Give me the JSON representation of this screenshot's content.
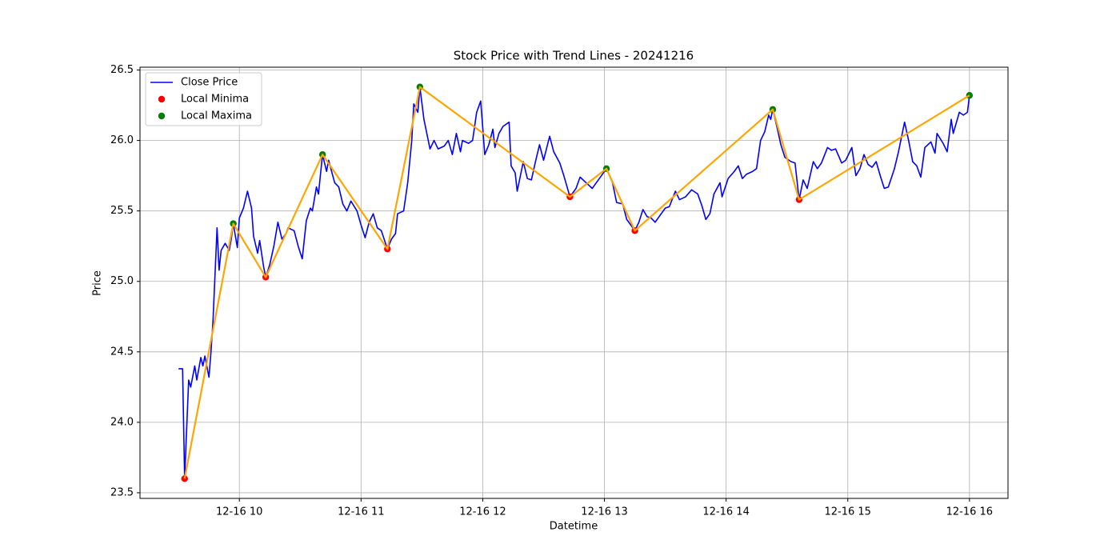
{
  "chart_data": {
    "type": "line",
    "title": "Stock Price with Trend Lines - 20241216",
    "xlabel": "Datetime",
    "ylabel": "Price",
    "grid": true,
    "legend": "upper left",
    "xlim": [
      "12-16 09:11",
      "12-16 16:19"
    ],
    "xticks": [
      {
        "value": "12-16 10:00",
        "label": "12-16 10"
      },
      {
        "value": "12-16 11:00",
        "label": "12-16 11"
      },
      {
        "value": "12-16 12:00",
        "label": "12-16 12"
      },
      {
        "value": "12-16 13:00",
        "label": "12-16 13"
      },
      {
        "value": "12-16 14:00",
        "label": "12-16 14"
      },
      {
        "value": "12-16 15:00",
        "label": "12-16 15"
      },
      {
        "value": "12-16 16:00",
        "label": "12-16 16"
      }
    ],
    "ylim": [
      23.46,
      26.52
    ],
    "yticks": [
      23.5,
      {
        "value": 24,
        "label": "24.0"
      },
      24.5,
      {
        "value": 25,
        "label": "25.0"
      },
      25.5,
      {
        "value": 26,
        "label": "26.0"
      },
      26.5
    ],
    "x": [
      "12-16 09:30",
      "12-16 09:32",
      "12-16 09:33",
      "12-16 09:35",
      "12-16 09:36",
      "12-16 09:38",
      "12-16 09:39",
      "12-16 09:41",
      "12-16 09:42",
      "12-16 09:43",
      "12-16 09:45",
      "12-16 09:46",
      "12-16 09:47",
      "12-16 09:49",
      "12-16 09:50",
      "12-16 09:51",
      "12-16 09:53",
      "12-16 09:55",
      "12-16 09:56",
      "12-16 09:57",
      "12-16 09:59",
      "12-16 10:00",
      "12-16 10:02",
      "12-16 10:04",
      "12-16 10:06",
      "12-16 10:07",
      "12-16 10:09",
      "12-16 10:10",
      "12-16 10:12",
      "12-16 10:13",
      "12-16 10:15",
      "12-16 10:17",
      "12-16 10:19",
      "12-16 10:21",
      "12-16 10:23",
      "12-16 10:24",
      "12-16 10:27",
      "12-16 10:29",
      "12-16 10:31",
      "12-16 10:33",
      "12-16 10:35",
      "12-16 10:36",
      "12-16 10:38",
      "12-16 10:39",
      "12-16 10:41",
      "12-16 10:43",
      "12-16 10:44",
      "12-16 10:47",
      "12-16 10:49",
      "12-16 10:51",
      "12-16 10:53",
      "12-16 10:55",
      "12-16 10:58",
      "12-16 11:00",
      "12-16 11:02",
      "12-16 11:04",
      "12-16 11:06",
      "12-16 11:08",
      "12-16 11:10",
      "12-16 11:13",
      "12-16 11:15",
      "12-16 11:17",
      "12-16 11:18",
      "12-16 11:21",
      "12-16 11:23",
      "12-16 11:25",
      "12-16 11:26",
      "12-16 11:28",
      "12-16 11:29",
      "12-16 11:31",
      "12-16 11:32",
      "12-16 11:34",
      "12-16 11:36",
      "12-16 11:38",
      "12-16 11:41",
      "12-16 11:43",
      "12-16 11:45",
      "12-16 11:47",
      "12-16 11:49",
      "12-16 11:50",
      "12-16 11:53",
      "12-16 11:55",
      "12-16 11:57",
      "12-16 11:59",
      "12-16 12:01",
      "12-16 12:03",
      "12-16 12:05",
      "12-16 12:06",
      "12-16 12:08",
      "12-16 12:10",
      "12-16 12:13",
      "12-16 12:14",
      "12-16 12:16",
      "12-16 12:17",
      "12-16 12:20",
      "12-16 12:22",
      "12-16 12:24",
      "12-16 12:26",
      "12-16 12:28",
      "12-16 12:30",
      "12-16 12:33",
      "12-16 12:35",
      "12-16 12:38",
      "12-16 12:40",
      "12-16 12:43",
      "12-16 12:46",
      "12-16 12:48",
      "12-16 12:51",
      "12-16 12:54",
      "12-16 12:55",
      "12-16 12:57",
      "12-16 13:01",
      "12-16 13:04",
      "12-16 13:06",
      "12-16 13:09",
      "12-16 13:11",
      "12-16 13:13",
      "12-16 13:15",
      "12-16 13:17",
      "12-16 13:19",
      "12-16 13:21",
      "12-16 13:23",
      "12-16 13:25",
      "12-16 13:28",
      "12-16 13:30",
      "12-16 13:32",
      "12-16 13:35",
      "12-16 13:37",
      "12-16 13:40",
      "12-16 13:43",
      "12-16 13:46",
      "12-16 13:48",
      "12-16 13:50",
      "12-16 13:52",
      "12-16 13:54",
      "12-16 13:57",
      "12-16 13:58",
      "12-16 14:01",
      "12-16 14:04",
      "12-16 14:06",
      "12-16 14:08",
      "12-16 14:10",
      "12-16 14:13",
      "12-16 14:15",
      "12-16 14:17",
      "12-16 14:19",
      "12-16 14:21",
      "12-16 14:22",
      "12-16 14:23",
      "12-16 14:25",
      "12-16 14:27",
      "12-16 14:29",
      "12-16 14:32",
      "12-16 14:34",
      "12-16 14:36",
      "12-16 14:38",
      "12-16 14:40",
      "12-16 14:43",
      "12-16 14:45",
      "12-16 14:47",
      "12-16 14:50",
      "12-16 14:52",
      "12-16 14:54",
      "12-16 14:57",
      "12-16 14:59",
      "12-16 15:02",
      "12-16 15:04",
      "12-16 15:06",
      "12-16 15:08",
      "12-16 15:10",
      "12-16 15:12",
      "12-16 15:14",
      "12-16 15:16",
      "12-16 15:18",
      "12-16 15:20",
      "12-16 15:23",
      "12-16 15:25",
      "12-16 15:28",
      "12-16 15:30",
      "12-16 15:32",
      "12-16 15:34",
      "12-16 15:36",
      "12-16 15:38",
      "12-16 15:41",
      "12-16 15:43",
      "12-16 15:44",
      "12-16 15:47",
      "12-16 15:49",
      "12-16 15:51",
      "12-16 15:52",
      "12-16 15:55",
      "12-16 15:57",
      "12-16 15:59",
      "12-16 16:00"
    ],
    "series": [
      {
        "name": "Close Price",
        "color": "blue",
        "values": [
          24.38,
          24.38,
          23.6,
          24.3,
          24.25,
          24.4,
          24.3,
          24.46,
          24.4,
          24.47,
          24.32,
          24.5,
          24.72,
          25.38,
          25.08,
          25.22,
          25.27,
          25.22,
          25.3,
          25.41,
          25.24,
          25.45,
          25.52,
          25.64,
          25.52,
          25.32,
          25.2,
          25.29,
          25.1,
          25.03,
          25.12,
          25.25,
          25.42,
          25.3,
          25.34,
          25.38,
          25.36,
          25.25,
          25.16,
          25.43,
          25.52,
          25.5,
          25.67,
          25.62,
          25.9,
          25.78,
          25.86,
          25.7,
          25.67,
          25.55,
          25.5,
          25.57,
          25.5,
          25.4,
          25.31,
          25.42,
          25.48,
          25.38,
          25.36,
          25.23,
          25.3,
          25.34,
          25.48,
          25.5,
          25.7,
          26.0,
          26.26,
          26.2,
          26.38,
          26.15,
          26.08,
          25.94,
          26.0,
          25.94,
          25.96,
          26.0,
          25.9,
          26.05,
          25.92,
          26.0,
          25.98,
          26.0,
          26.2,
          26.28,
          25.9,
          25.97,
          26.08,
          25.95,
          26.05,
          26.1,
          26.13,
          25.82,
          25.77,
          25.64,
          25.85,
          25.73,
          25.72,
          25.85,
          25.97,
          25.86,
          26.03,
          25.92,
          25.84,
          25.75,
          25.6,
          25.66,
          25.74,
          25.7,
          25.66,
          25.68,
          25.72,
          25.8,
          25.7,
          25.56,
          25.55,
          25.44,
          25.4,
          25.36,
          25.42,
          25.51,
          25.46,
          25.45,
          25.42,
          25.48,
          25.52,
          25.53,
          25.64,
          25.58,
          25.6,
          25.65,
          25.62,
          25.54,
          25.44,
          25.48,
          25.62,
          25.7,
          25.6,
          25.73,
          25.78,
          25.82,
          25.73,
          25.76,
          25.78,
          25.8,
          26.0,
          26.06,
          26.18,
          26.15,
          26.22,
          26.1,
          25.97,
          25.88,
          25.85,
          25.84,
          25.58,
          25.72,
          25.66,
          25.85,
          25.8,
          25.84,
          25.95,
          25.93,
          25.94,
          25.84,
          25.86,
          25.95,
          25.75,
          25.8,
          25.9,
          25.83,
          25.81,
          25.85,
          25.75,
          25.66,
          25.67,
          25.8,
          25.92,
          26.13,
          26.0,
          25.85,
          25.82,
          25.74,
          25.95,
          25.99,
          25.91,
          26.05,
          25.98,
          25.92,
          26.15,
          26.05,
          26.2,
          26.18,
          26.2,
          26.32
        ]
      }
    ],
    "minima": {
      "name": "Local Minima",
      "color": "red",
      "x": [
        "12-16 09:33",
        "12-16 10:13",
        "12-16 11:13",
        "12-16 12:43",
        "12-16 13:15",
        "12-16 14:36"
      ],
      "values": [
        23.6,
        25.03,
        25.23,
        25.6,
        25.36,
        25.58
      ]
    },
    "maxima": {
      "name": "Local Maxima",
      "color": "green",
      "x": [
        "12-16 09:57",
        "12-16 10:41",
        "12-16 11:29",
        "12-16 13:01",
        "12-16 14:23",
        "12-16 16:00"
      ],
      "values": [
        25.41,
        25.9,
        26.38,
        25.8,
        26.22,
        26.32
      ]
    },
    "trend_line": {
      "color": "orange",
      "x": [
        "12-16 09:33",
        "12-16 09:57",
        "12-16 10:13",
        "12-16 10:41",
        "12-16 11:13",
        "12-16 11:29",
        "12-16 12:43",
        "12-16 13:01",
        "12-16 13:15",
        "12-16 14:23",
        "12-16 14:36",
        "12-16 16:00"
      ],
      "values": [
        23.6,
        25.41,
        25.03,
        25.9,
        25.23,
        26.38,
        25.6,
        25.8,
        25.36,
        26.22,
        25.58,
        26.32
      ]
    }
  }
}
